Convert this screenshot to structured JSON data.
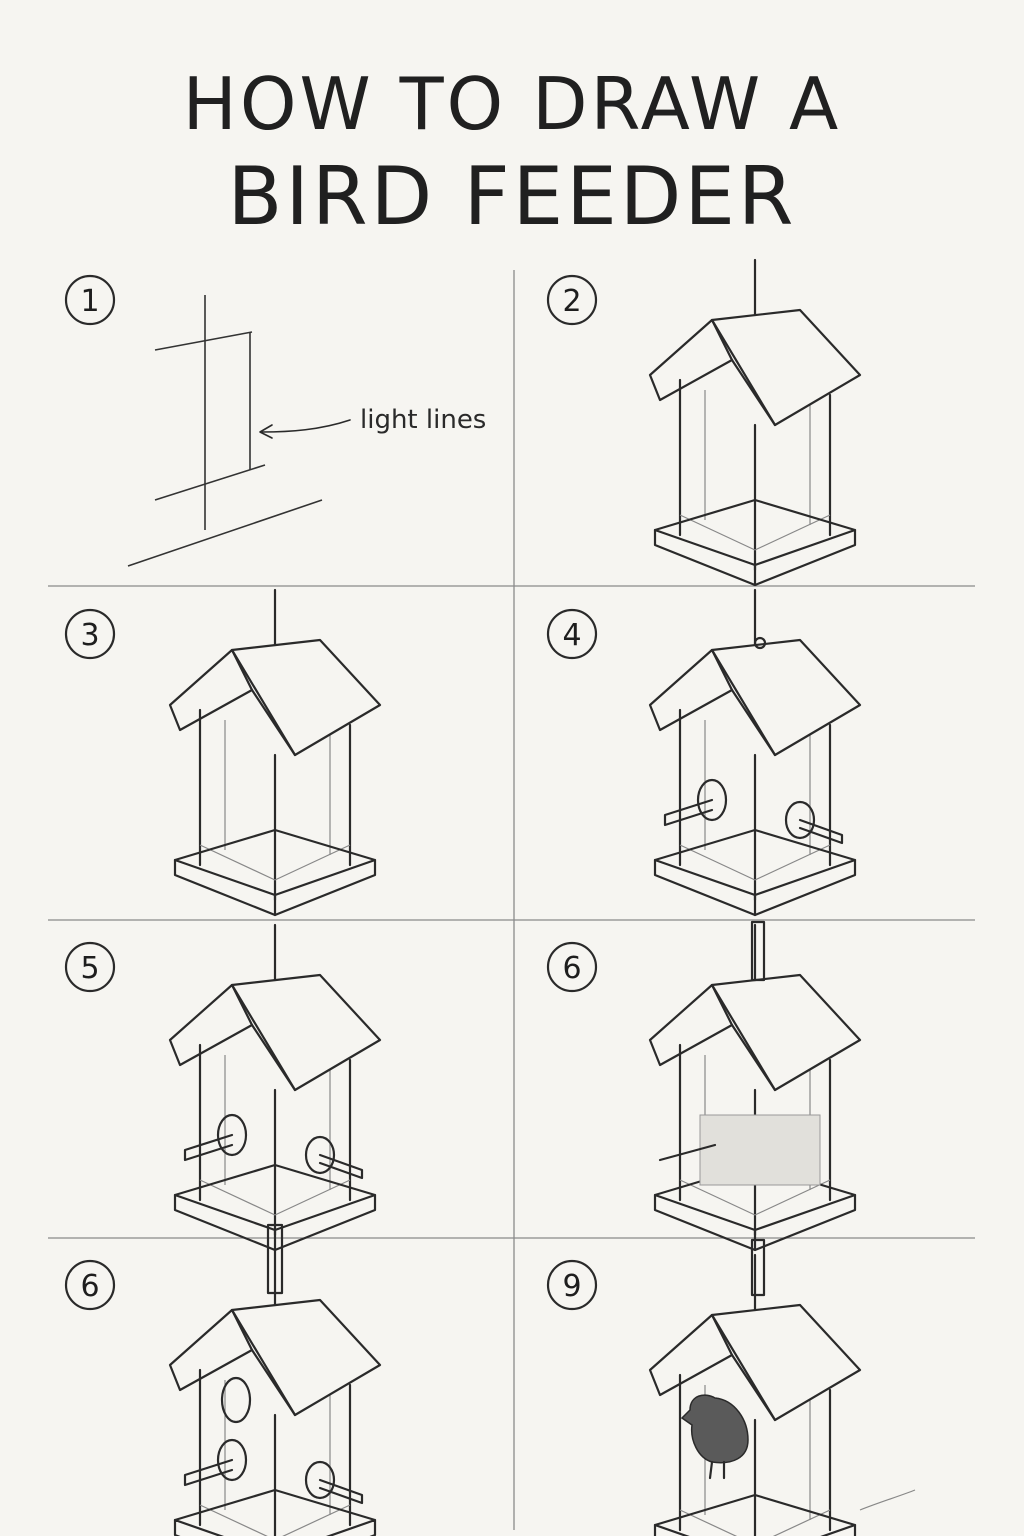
{
  "title": {
    "line1": "HOW TO DRAW A",
    "line2": "BIRD FEEDER"
  },
  "steps": [
    {
      "number": "1",
      "note": "light lines"
    },
    {
      "number": "2"
    },
    {
      "number": "3"
    },
    {
      "number": "4"
    },
    {
      "number": "5"
    },
    {
      "number": "6"
    },
    {
      "number": "6"
    },
    {
      "number": "9"
    }
  ],
  "colors": {
    "paper": "#f6f5f1",
    "ink": "#2a2a2a",
    "grid": "#8a8a8a"
  }
}
